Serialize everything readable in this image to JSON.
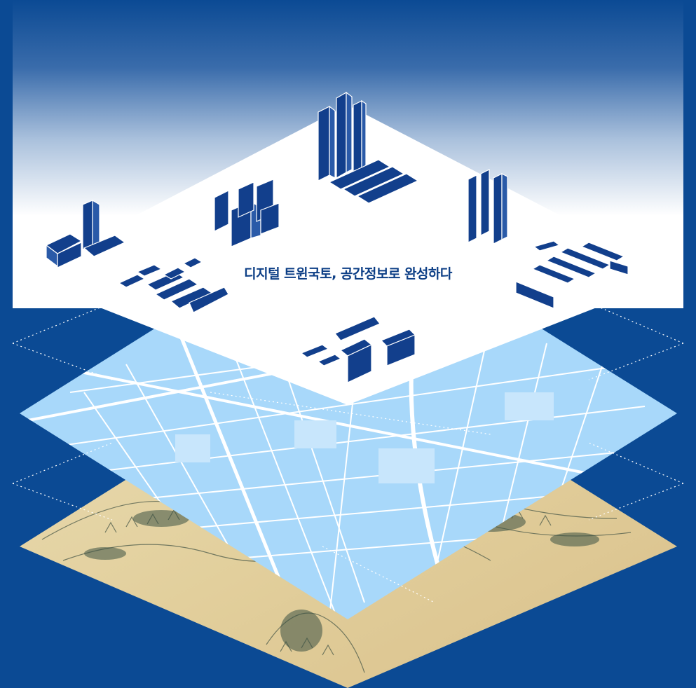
{
  "headline": "디지털 트윈국토, 공간정보로 완성하다",
  "layers": [
    {
      "id": "digital-twin",
      "description": "3D building blocks on white plane"
    },
    {
      "id": "modern-map",
      "description": "light-blue street network"
    },
    {
      "id": "historic-map",
      "description": "old painted topographic map"
    }
  ],
  "colors": {
    "background": "#0b4a94",
    "building": "#123f8c",
    "map_blue": "#a8d8fa",
    "parchment": "#e8d7a8"
  }
}
